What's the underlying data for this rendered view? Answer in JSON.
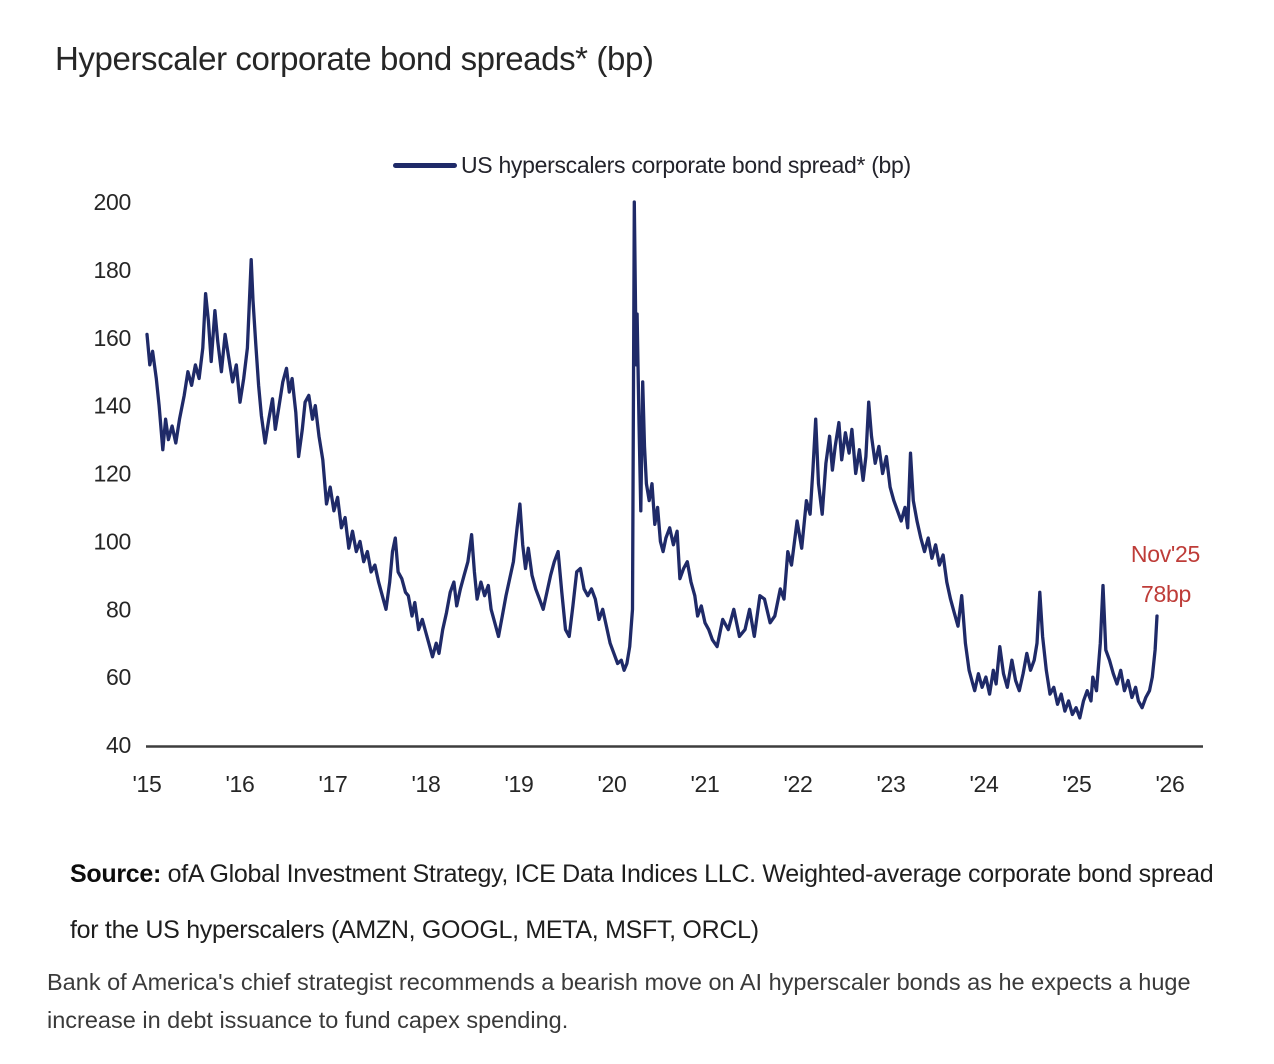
{
  "title": "Hyperscaler corporate bond spreads* (bp)",
  "legend": {
    "label": "US hyperscalers corporate bond spread* (bp)"
  },
  "annotation": {
    "line1": "Nov'25",
    "line2": "78bp"
  },
  "source": {
    "prefix": "Source:",
    "text": " ofA Global Investment Strategy, ICE Data Indices LLC. Weighted-average corporate bond spread for the US hyperscalers (AMZN, GOOGL, META, MSFT, ORCL)"
  },
  "caption": "Bank of America's chief strategist recommends a bearish move on AI hyperscaler bonds as he expects a huge increase in debt issuance to fund capex spending.",
  "colors": {
    "line": "#1f2a68",
    "annotation": "#be3c38",
    "axis": "#3d3d3d",
    "text": "#262626"
  },
  "chart_data": {
    "type": "line",
    "title": "Hyperscaler corporate bond spreads* (bp)",
    "xlabel": "",
    "ylabel": "bp",
    "x_range": [
      2015,
      2026
    ],
    "ylim": [
      40,
      200
    ],
    "yticks": [
      200,
      180,
      160,
      140,
      120,
      100,
      80,
      60,
      40
    ],
    "xticks": [
      {
        "year": 2015,
        "label": "'15"
      },
      {
        "year": 2016,
        "label": "'16"
      },
      {
        "year": 2017,
        "label": "'17"
      },
      {
        "year": 2018,
        "label": "'18"
      },
      {
        "year": 2019,
        "label": "'19"
      },
      {
        "year": 2020,
        "label": "'20"
      },
      {
        "year": 2021,
        "label": "'21"
      },
      {
        "year": 2022,
        "label": "'22"
      },
      {
        "year": 2023,
        "label": "'23"
      },
      {
        "year": 2024,
        "label": "'24"
      },
      {
        "year": 2025,
        "label": "'25"
      },
      {
        "year": 2026,
        "label": "'26"
      }
    ],
    "grid": false,
    "legend_position": "top",
    "annotation_point": {
      "x": 2025.86,
      "y": 78
    },
    "series": [
      {
        "name": "US hyperscalers corporate bond spread* (bp)",
        "points": [
          [
            2015.0,
            161
          ],
          [
            2015.03,
            152
          ],
          [
            2015.06,
            156
          ],
          [
            2015.1,
            148
          ],
          [
            2015.13,
            140
          ],
          [
            2015.17,
            127
          ],
          [
            2015.2,
            136
          ],
          [
            2015.23,
            130
          ],
          [
            2015.27,
            134
          ],
          [
            2015.31,
            129
          ],
          [
            2015.35,
            136
          ],
          [
            2015.4,
            143
          ],
          [
            2015.44,
            150
          ],
          [
            2015.48,
            146
          ],
          [
            2015.52,
            152
          ],
          [
            2015.56,
            148
          ],
          [
            2015.6,
            157
          ],
          [
            2015.63,
            173
          ],
          [
            2015.66,
            165
          ],
          [
            2015.69,
            153
          ],
          [
            2015.73,
            168
          ],
          [
            2015.76,
            159
          ],
          [
            2015.8,
            150
          ],
          [
            2015.84,
            161
          ],
          [
            2015.88,
            154
          ],
          [
            2015.92,
            147
          ],
          [
            2015.96,
            152
          ],
          [
            2016.0,
            141
          ],
          [
            2016.04,
            148
          ],
          [
            2016.08,
            157
          ],
          [
            2016.12,
            183
          ],
          [
            2016.14,
            171
          ],
          [
            2016.17,
            158
          ],
          [
            2016.2,
            146
          ],
          [
            2016.23,
            137
          ],
          [
            2016.27,
            129
          ],
          [
            2016.31,
            136
          ],
          [
            2016.35,
            142
          ],
          [
            2016.38,
            133
          ],
          [
            2016.42,
            140
          ],
          [
            2016.46,
            147
          ],
          [
            2016.5,
            151
          ],
          [
            2016.53,
            144
          ],
          [
            2016.56,
            148
          ],
          [
            2016.6,
            138
          ],
          [
            2016.63,
            125
          ],
          [
            2016.67,
            133
          ],
          [
            2016.7,
            141
          ],
          [
            2016.74,
            143
          ],
          [
            2016.78,
            136
          ],
          [
            2016.81,
            140
          ],
          [
            2016.85,
            131
          ],
          [
            2016.89,
            124
          ],
          [
            2016.93,
            111
          ],
          [
            2016.97,
            116
          ],
          [
            2017.01,
            109
          ],
          [
            2017.05,
            113
          ],
          [
            2017.09,
            104
          ],
          [
            2017.13,
            107
          ],
          [
            2017.17,
            98
          ],
          [
            2017.21,
            103
          ],
          [
            2017.25,
            97
          ],
          [
            2017.29,
            100
          ],
          [
            2017.33,
            94
          ],
          [
            2017.37,
            97
          ],
          [
            2017.41,
            91
          ],
          [
            2017.45,
            93
          ],
          [
            2017.49,
            88
          ],
          [
            2017.53,
            84
          ],
          [
            2017.57,
            80
          ],
          [
            2017.61,
            88
          ],
          [
            2017.64,
            97
          ],
          [
            2017.67,
            101
          ],
          [
            2017.7,
            91
          ],
          [
            2017.74,
            89
          ],
          [
            2017.78,
            85
          ],
          [
            2017.81,
            84
          ],
          [
            2017.85,
            78
          ],
          [
            2017.88,
            82
          ],
          [
            2017.92,
            74
          ],
          [
            2017.96,
            77
          ],
          [
            2018.0,
            73
          ],
          [
            2018.03,
            70
          ],
          [
            2018.07,
            66
          ],
          [
            2018.11,
            70
          ],
          [
            2018.14,
            67
          ],
          [
            2018.18,
            74
          ],
          [
            2018.22,
            79
          ],
          [
            2018.26,
            85
          ],
          [
            2018.3,
            88
          ],
          [
            2018.33,
            81
          ],
          [
            2018.37,
            86
          ],
          [
            2018.41,
            90
          ],
          [
            2018.45,
            94
          ],
          [
            2018.49,
            102
          ],
          [
            2018.52,
            91
          ],
          [
            2018.55,
            83
          ],
          [
            2018.59,
            88
          ],
          [
            2018.63,
            84
          ],
          [
            2018.67,
            87
          ],
          [
            2018.7,
            80
          ],
          [
            2018.74,
            76
          ],
          [
            2018.78,
            72
          ],
          [
            2018.82,
            78
          ],
          [
            2018.86,
            84
          ],
          [
            2018.9,
            89
          ],
          [
            2018.94,
            94
          ],
          [
            2018.98,
            104
          ],
          [
            2019.01,
            111
          ],
          [
            2019.04,
            99
          ],
          [
            2019.07,
            92
          ],
          [
            2019.1,
            98
          ],
          [
            2019.14,
            90
          ],
          [
            2019.18,
            86
          ],
          [
            2019.22,
            83
          ],
          [
            2019.26,
            80
          ],
          [
            2019.3,
            85
          ],
          [
            2019.34,
            90
          ],
          [
            2019.38,
            94
          ],
          [
            2019.42,
            97
          ],
          [
            2019.46,
            85
          ],
          [
            2019.5,
            74
          ],
          [
            2019.54,
            72
          ],
          [
            2019.58,
            81
          ],
          [
            2019.62,
            91
          ],
          [
            2019.66,
            92
          ],
          [
            2019.7,
            86
          ],
          [
            2019.74,
            84
          ],
          [
            2019.78,
            86
          ],
          [
            2019.82,
            83
          ],
          [
            2019.86,
            77
          ],
          [
            2019.9,
            80
          ],
          [
            2019.94,
            75
          ],
          [
            2019.98,
            70
          ],
          [
            2020.02,
            67
          ],
          [
            2020.06,
            64
          ],
          [
            2020.1,
            65
          ],
          [
            2020.13,
            62
          ],
          [
            2020.16,
            64
          ],
          [
            2020.19,
            69
          ],
          [
            2020.22,
            80
          ],
          [
            2020.24,
            200
          ],
          [
            2020.26,
            152
          ],
          [
            2020.27,
            167
          ],
          [
            2020.29,
            135
          ],
          [
            2020.31,
            109
          ],
          [
            2020.33,
            147
          ],
          [
            2020.35,
            128
          ],
          [
            2020.37,
            117
          ],
          [
            2020.4,
            112
          ],
          [
            2020.43,
            117
          ],
          [
            2020.46,
            105
          ],
          [
            2020.49,
            110
          ],
          [
            2020.52,
            100
          ],
          [
            2020.55,
            97
          ],
          [
            2020.58,
            101
          ],
          [
            2020.62,
            104
          ],
          [
            2020.66,
            99
          ],
          [
            2020.7,
            103
          ],
          [
            2020.73,
            89
          ],
          [
            2020.77,
            92
          ],
          [
            2020.81,
            94
          ],
          [
            2020.85,
            88
          ],
          [
            2020.89,
            84
          ],
          [
            2020.92,
            78
          ],
          [
            2020.96,
            81
          ],
          [
            2021.0,
            76
          ],
          [
            2021.04,
            74
          ],
          [
            2021.08,
            71
          ],
          [
            2021.13,
            69
          ],
          [
            2021.19,
            77
          ],
          [
            2021.25,
            74
          ],
          [
            2021.31,
            80
          ],
          [
            2021.37,
            72
          ],
          [
            2021.43,
            74
          ],
          [
            2021.48,
            80
          ],
          [
            2021.53,
            72
          ],
          [
            2021.59,
            84
          ],
          [
            2021.64,
            83
          ],
          [
            2021.7,
            76
          ],
          [
            2021.75,
            78
          ],
          [
            2021.81,
            86
          ],
          [
            2021.85,
            83
          ],
          [
            2021.89,
            97
          ],
          [
            2021.93,
            93
          ],
          [
            2021.99,
            106
          ],
          [
            2022.04,
            98
          ],
          [
            2022.09,
            112
          ],
          [
            2022.13,
            108
          ],
          [
            2022.16,
            121
          ],
          [
            2022.19,
            136
          ],
          [
            2022.22,
            117
          ],
          [
            2022.26,
            108
          ],
          [
            2022.3,
            123
          ],
          [
            2022.34,
            131
          ],
          [
            2022.37,
            121
          ],
          [
            2022.4,
            128
          ],
          [
            2022.44,
            135
          ],
          [
            2022.47,
            124
          ],
          [
            2022.51,
            132
          ],
          [
            2022.55,
            126
          ],
          [
            2022.58,
            133
          ],
          [
            2022.62,
            120
          ],
          [
            2022.66,
            127
          ],
          [
            2022.7,
            118
          ],
          [
            2022.73,
            125
          ],
          [
            2022.76,
            141
          ],
          [
            2022.79,
            131
          ],
          [
            2022.83,
            123
          ],
          [
            2022.87,
            128
          ],
          [
            2022.91,
            120
          ],
          [
            2022.95,
            125
          ],
          [
            2022.99,
            116
          ],
          [
            2023.03,
            112
          ],
          [
            2023.07,
            109
          ],
          [
            2023.11,
            106
          ],
          [
            2023.15,
            110
          ],
          [
            2023.18,
            104
          ],
          [
            2023.21,
            126
          ],
          [
            2023.24,
            112
          ],
          [
            2023.28,
            106
          ],
          [
            2023.32,
            101
          ],
          [
            2023.36,
            97
          ],
          [
            2023.4,
            101
          ],
          [
            2023.44,
            95
          ],
          [
            2023.48,
            99
          ],
          [
            2023.52,
            93
          ],
          [
            2023.56,
            96
          ],
          [
            2023.6,
            88
          ],
          [
            2023.64,
            83
          ],
          [
            2023.68,
            79
          ],
          [
            2023.72,
            75
          ],
          [
            2023.76,
            84
          ],
          [
            2023.8,
            70
          ],
          [
            2023.84,
            62
          ],
          [
            2023.88,
            58
          ],
          [
            2023.9,
            56
          ],
          [
            2023.94,
            61
          ],
          [
            2023.98,
            57
          ],
          [
            2024.02,
            60
          ],
          [
            2024.06,
            55
          ],
          [
            2024.1,
            62
          ],
          [
            2024.13,
            58
          ],
          [
            2024.17,
            69
          ],
          [
            2024.21,
            61
          ],
          [
            2024.25,
            57
          ],
          [
            2024.3,
            65
          ],
          [
            2024.34,
            59
          ],
          [
            2024.38,
            56
          ],
          [
            2024.42,
            61
          ],
          [
            2024.46,
            67
          ],
          [
            2024.5,
            62
          ],
          [
            2024.54,
            65
          ],
          [
            2024.57,
            70
          ],
          [
            2024.6,
            85
          ],
          [
            2024.63,
            72
          ],
          [
            2024.67,
            62
          ],
          [
            2024.71,
            55
          ],
          [
            2024.75,
            57
          ],
          [
            2024.79,
            52
          ],
          [
            2024.83,
            55
          ],
          [
            2024.87,
            50
          ],
          [
            2024.91,
            53
          ],
          [
            2024.95,
            49
          ],
          [
            2024.99,
            51
          ],
          [
            2025.03,
            48
          ],
          [
            2025.07,
            53
          ],
          [
            2025.11,
            56
          ],
          [
            2025.15,
            53
          ],
          [
            2025.17,
            60
          ],
          [
            2025.21,
            56
          ],
          [
            2025.25,
            70
          ],
          [
            2025.28,
            87
          ],
          [
            2025.31,
            68
          ],
          [
            2025.35,
            65
          ],
          [
            2025.39,
            61
          ],
          [
            2025.43,
            58
          ],
          [
            2025.47,
            62
          ],
          [
            2025.51,
            56
          ],
          [
            2025.55,
            59
          ],
          [
            2025.59,
            54
          ],
          [
            2025.63,
            57
          ],
          [
            2025.66,
            53
          ],
          [
            2025.7,
            51
          ],
          [
            2025.74,
            54
          ],
          [
            2025.78,
            56
          ],
          [
            2025.81,
            60
          ],
          [
            2025.84,
            68
          ],
          [
            2025.86,
            78
          ]
        ]
      }
    ]
  }
}
